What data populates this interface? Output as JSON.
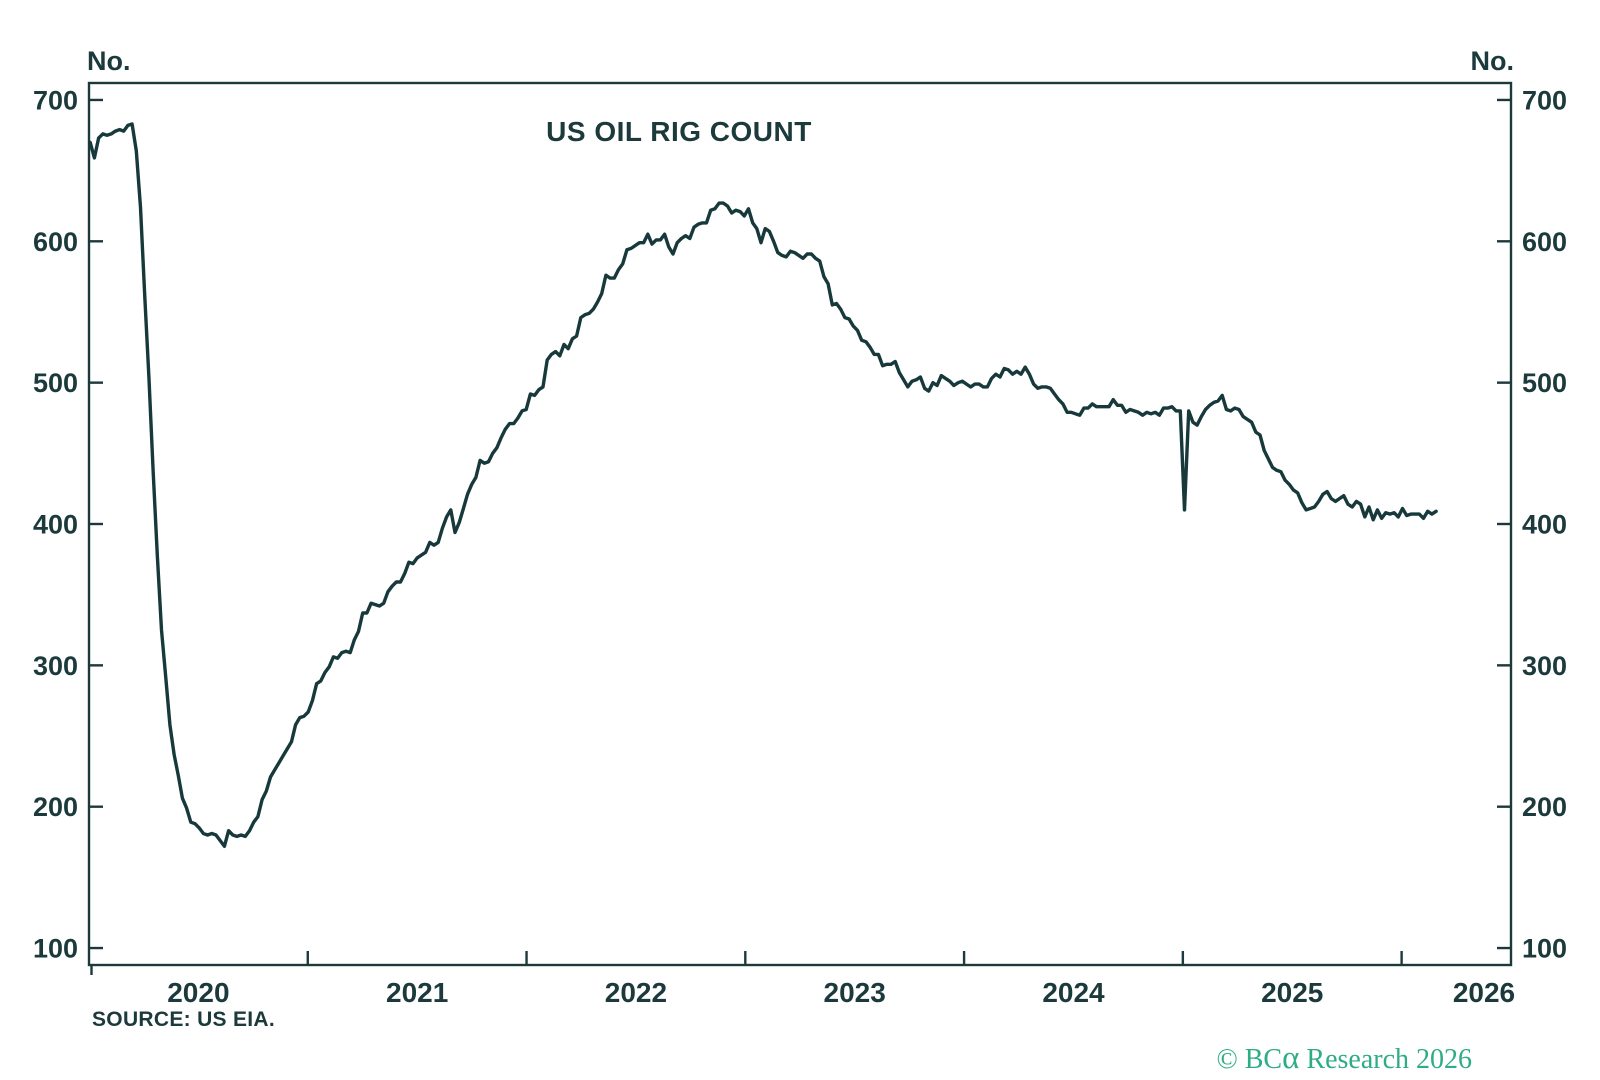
{
  "page": {
    "background": "#ffffff"
  },
  "chart_data": {
    "type": "line",
    "title": "US OIL RIG COUNT",
    "unit_label_left": "No.",
    "unit_label_right": "No.",
    "source_note": "SOURCE: US EIA.",
    "watermark": {
      "pre": "© BC",
      "alpha": "α",
      "post": " Research 2026"
    },
    "colors": {
      "line": "#17393B",
      "text": "#1C3A3C",
      "watermark": "#2EAC85",
      "background": "#ffffff"
    },
    "grid": "off",
    "legend": "none",
    "y_axis": {
      "ticks": [
        100,
        200,
        300,
        400,
        500,
        600,
        700
      ],
      "range": [
        88,
        712
      ],
      "tick_sides": "both"
    },
    "x_axis": {
      "boundary_tick_years": [
        2020,
        2021,
        2022,
        2023,
        2024,
        2025,
        2026
      ],
      "year_labels": [
        "2020",
        "2021",
        "2022",
        "2023",
        "2024",
        "2025",
        "2026"
      ],
      "range_years": [
        2020.0,
        2026.5
      ]
    },
    "series": [
      {
        "name": "US oil rig count",
        "unit": "rigs (No.)",
        "frequency": "weekly",
        "start_year": 2020.0055,
        "step_years": 0.0191650924,
        "values": [
          670,
          659,
          673,
          676,
          675,
          676,
          678,
          679,
          678,
          682,
          683,
          664,
          624,
          562,
          504,
          438,
          378,
          325,
          292,
          258,
          237,
          222,
          206,
          199,
          189,
          188,
          185,
          181,
          180,
          181,
          180,
          176,
          172,
          183,
          180,
          179,
          180,
          179,
          183,
          189,
          193,
          205,
          211,
          221,
          226,
          231,
          236,
          241,
          246,
          258,
          263,
          264,
          267,
          275,
          287,
          289,
          295,
          299,
          306,
          305,
          309,
          310,
          309,
          318,
          324,
          337,
          337,
          344,
          343,
          342,
          344,
          352,
          356,
          359,
          359,
          365,
          373,
          372,
          376,
          378,
          380,
          387,
          385,
          387,
          397,
          405,
          410,
          394,
          401,
          411,
          421,
          428,
          433,
          445,
          443,
          444,
          450,
          454,
          461,
          467,
          471,
          471,
          475,
          480,
          481,
          492,
          491,
          495,
          497,
          516,
          520,
          522,
          519,
          527,
          524,
          531,
          533,
          546,
          548,
          549,
          552,
          557,
          563,
          576,
          574,
          574,
          580,
          584,
          594,
          595,
          597,
          599,
          599,
          605,
          598,
          601,
          601,
          605,
          596,
          591,
          599,
          602,
          604,
          602,
          610,
          612,
          613,
          613,
          622,
          623,
          627,
          627,
          625,
          620,
          622,
          621,
          618,
          623,
          613,
          609,
          599,
          609,
          607,
          600,
          592,
          590,
          589,
          593,
          592,
          590,
          588,
          591,
          591,
          588,
          586,
          575,
          570,
          555,
          556,
          552,
          546,
          545,
          540,
          537,
          530,
          529,
          525,
          520,
          520,
          512,
          513,
          513,
          515,
          507,
          502,
          497,
          501,
          502,
          504,
          496,
          494,
          500,
          498,
          505,
          503,
          501,
          498,
          500,
          501,
          499,
          497,
          499,
          499,
          497,
          497,
          503,
          506,
          504,
          510,
          509,
          506,
          508,
          506,
          511,
          506,
          499,
          496,
          497,
          497,
          496,
          492,
          488,
          485,
          479,
          479,
          478,
          477,
          482,
          482,
          485,
          483,
          483,
          483,
          483,
          488,
          484,
          484,
          479,
          481,
          480,
          479,
          477,
          479,
          478,
          479,
          477,
          482,
          482,
          483,
          480,
          480,
          410,
          480,
          472,
          470,
          476,
          481,
          484,
          486,
          487,
          491,
          481,
          480,
          482,
          481,
          476,
          474,
          472,
          465,
          463,
          452,
          446,
          440,
          438,
          437,
          431,
          428,
          424,
          422,
          415,
          410,
          411,
          412,
          416,
          421,
          423,
          418,
          416,
          418,
          420,
          414,
          412,
          416,
          414,
          405,
          412,
          403,
          410,
          404,
          408,
          407,
          408,
          405,
          411,
          406,
          407,
          407,
          407,
          404,
          409,
          407,
          409
        ]
      }
    ]
  }
}
